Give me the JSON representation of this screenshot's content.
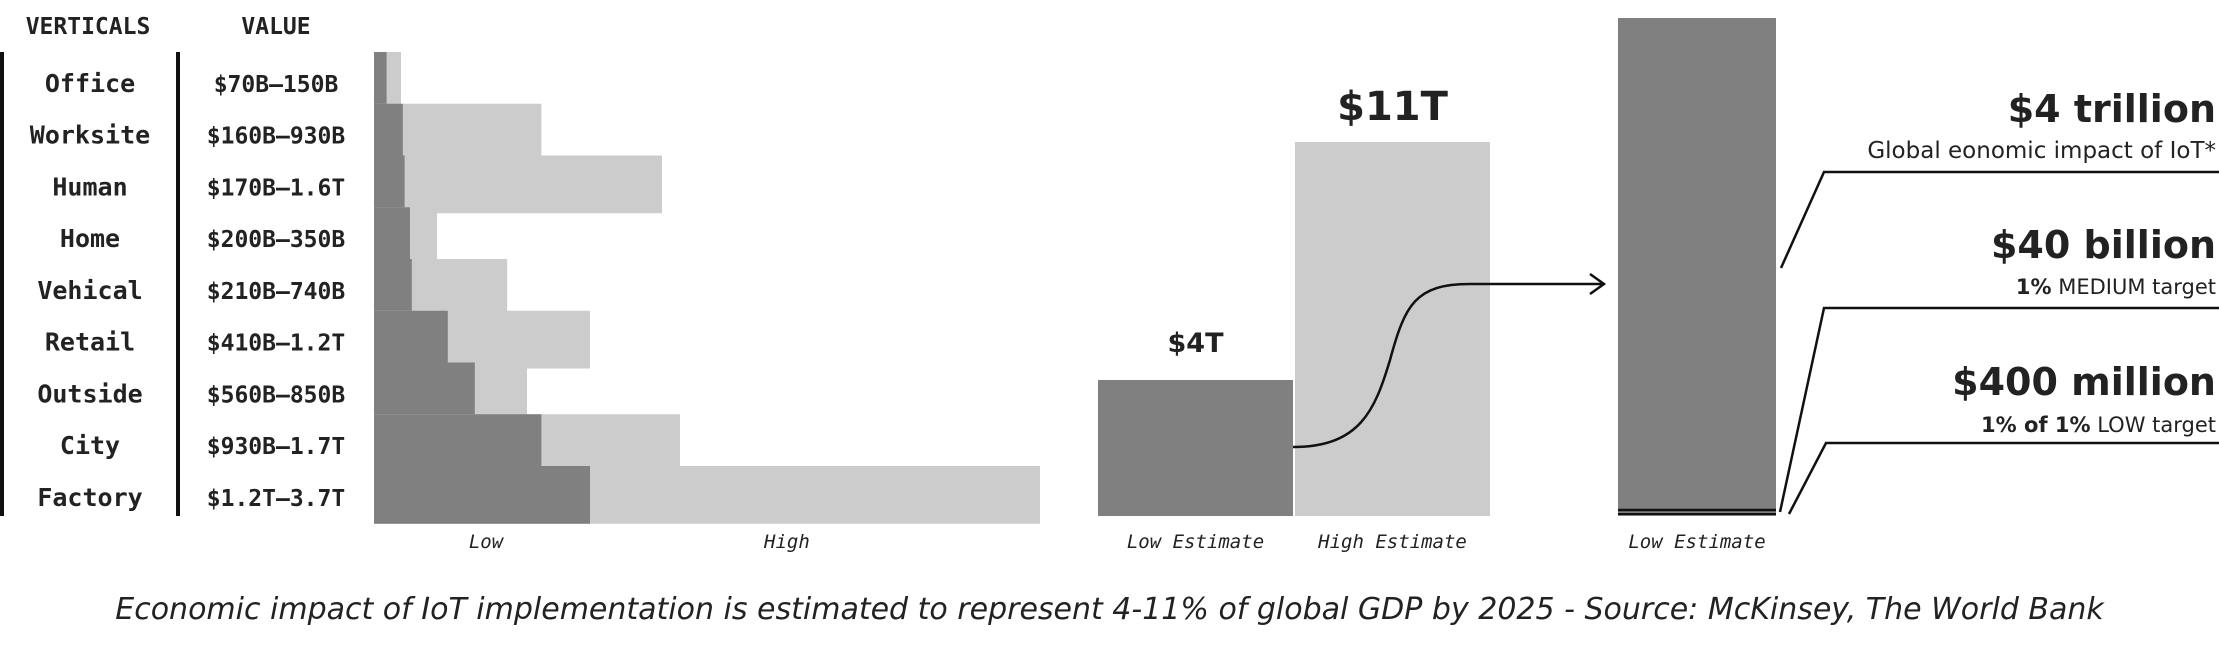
{
  "chart_data": [
    {
      "type": "bar",
      "subtype": "horizontal-range",
      "table_headers": {
        "vertical": "VERTICALS",
        "value": "VALUE"
      },
      "categories": [
        "Office",
        "Worksite",
        "Human",
        "Home",
        "Vehical",
        "Retail",
        "Outside",
        "City",
        "Factory"
      ],
      "value_labels": [
        "$70B–150B",
        "$160B–930B",
        "$170B–1.6T",
        "$200B–350B",
        "$210B–740B",
        "$410B–1.2T",
        "$560B–850B",
        "$930B–1.7T",
        "$1.2T–3.7T"
      ],
      "low": [
        0.07,
        0.16,
        0.17,
        0.2,
        0.21,
        0.41,
        0.56,
        0.93,
        1.2
      ],
      "high": [
        0.15,
        0.93,
        1.6,
        0.35,
        0.74,
        1.2,
        0.85,
        1.7,
        3.7
      ],
      "unit": "$T",
      "xlabel_low": "Low",
      "xlabel_high": "High",
      "colors": {
        "low": "#808080",
        "high": "#cccccc"
      }
    },
    {
      "type": "bar",
      "categories": [
        "Low Estimate",
        "High Estimate"
      ],
      "values": [
        4,
        11
      ],
      "value_labels": [
        "$4T",
        "$11T"
      ],
      "colors": [
        "#808080",
        "#cccccc"
      ]
    },
    {
      "type": "bar",
      "subtype": "stacked",
      "categories": [
        "Low Estimate"
      ],
      "values": [
        4000000000000
      ],
      "annotations": [
        {
          "value": "$4 trillion",
          "parts": [
            {
              "text": "Global eonomic impact of IoT*",
              "bold": false
            }
          ]
        },
        {
          "value": "$40 billion",
          "parts": [
            {
              "text": "1%",
              "bold": true
            },
            {
              "text": " MEDIUM target",
              "bold": false
            }
          ]
        },
        {
          "value": "$400 million",
          "parts": [
            {
              "text": "1% of 1%",
              "bold": true
            },
            {
              "text": " LOW target",
              "bold": false
            }
          ]
        }
      ],
      "color": "#808080"
    }
  ],
  "caption": "Economic impact of IoT implementation is estimated to represent 4-11% of global GDP by 2025 - Source: McKinsey, The World Bank"
}
